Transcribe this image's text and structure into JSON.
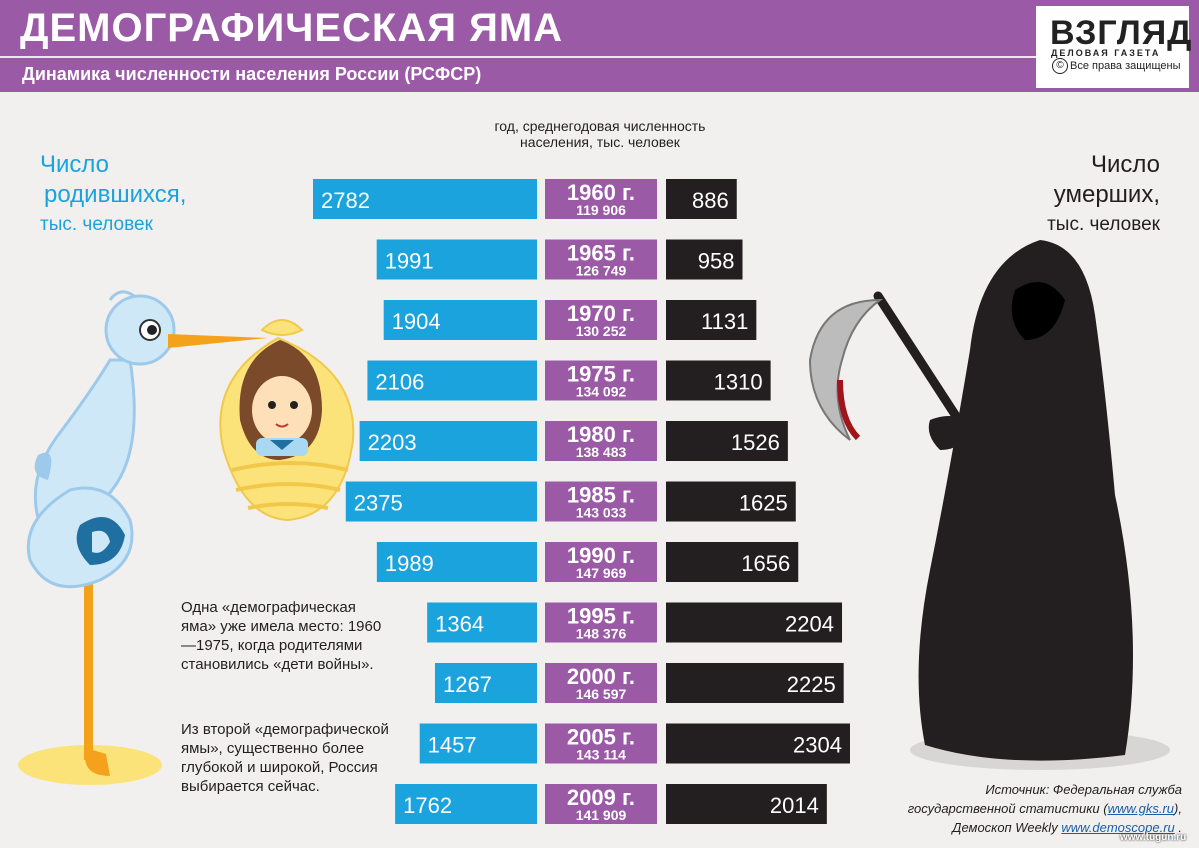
{
  "header": {
    "title": "ДЕМОГРАФИЧЕСКАЯ ЯМА",
    "subtitle": "Динамика численности населения России (РСФСР)"
  },
  "logo": {
    "name": "ВЗГЛЯД",
    "tagline": "ДЕЛОВАЯ ГАЗЕТА",
    "copyright_symbol": "©",
    "rights": "Все права защищены"
  },
  "labels": {
    "births_line1": "Число",
    "births_line2": "родившихся,",
    "births_unit": "тыс. человек",
    "deaths_line1": "Число",
    "deaths_line2": "умерших,",
    "deaths_unit": "тыс. человек",
    "center_header": "год, среднегодовая численность населения, тыс. человек"
  },
  "notes": {
    "note1": "Одна «демографическая яма» уже имела место: 1960—1975, когда родителями становились «дети войны».",
    "note2": "Из второй «демографической ямы», существенно более глубокой и широкой, Россия выбирается сейчас."
  },
  "source": {
    "line1": "Источник: Федеральная служба",
    "line2_prefix": "государственной статистики (",
    "link1": "www.gks.ru",
    "line2_suffix": "),",
    "line3_prefix": "Демоскоп Weekly ",
    "link2": "www.demoscope.ru",
    "line3_suffix": " ."
  },
  "watermark": "www.tugun.ru",
  "colors": {
    "header": "#9a5aa6",
    "births": "#1aa3dc",
    "years": "#9a5aa6",
    "deaths": "#231f20"
  },
  "chart_data": {
    "type": "bar",
    "categories": [
      "1960 г.",
      "1965 г.",
      "1970 г.",
      "1975 г.",
      "1980 г.",
      "1985 г.",
      "1990 г.",
      "1995 г.",
      "2000 г.",
      "2005 г.",
      "2009 г."
    ],
    "population": [
      "119 906",
      "126 749",
      "130 252",
      "134 092",
      "138 483",
      "143 033",
      "147 969",
      "148 376",
      "146 597",
      "143 114",
      "141 909"
    ],
    "series": [
      {
        "name": "Число родившихся",
        "values": [
          2782,
          1991,
          1904,
          2106,
          2203,
          2375,
          1989,
          1364,
          1267,
          1457,
          1762
        ]
      },
      {
        "name": "Число умерших",
        "values": [
          886,
          958,
          1131,
          1310,
          1526,
          1625,
          1656,
          2204,
          2225,
          2304,
          2014
        ]
      }
    ]
  }
}
